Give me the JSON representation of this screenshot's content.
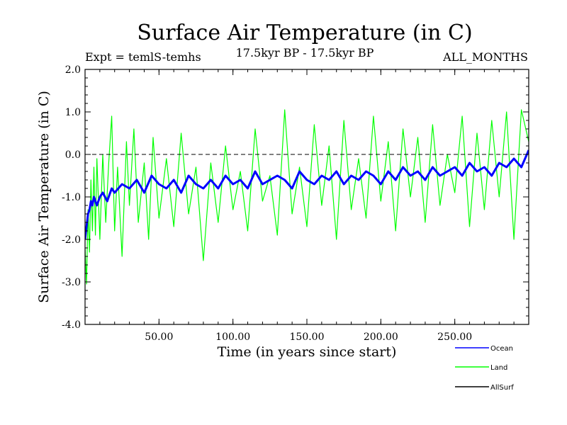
{
  "chart_data": {
    "type": "line",
    "title": "Surface Air Temperature (in C)",
    "subtitle_left": "Expt = temlS-temhs",
    "subtitle_center": "17.5kyr BP - 17.5kyr BP",
    "subtitle_right": "ALL_MONTHS",
    "xlabel": "Time (in years since start)",
    "ylabel": "Surface Air Temperature (in C)",
    "xlim": [
      0,
      300
    ],
    "ylim": [
      -4.0,
      2.0
    ],
    "xticks": [
      50,
      100,
      150,
      200,
      250
    ],
    "xtick_labels": [
      "50.00",
      "100.00",
      "150.00",
      "200.00",
      "250.00"
    ],
    "yticks": [
      -4,
      -3,
      -2,
      -1,
      0,
      1,
      2
    ],
    "ytick_labels": [
      "-4.0",
      "-3.0",
      "-2.0",
      "-1.0",
      "0.0",
      "1.0",
      "2.0"
    ],
    "reference_line": 0.0,
    "series": [
      {
        "name": "Land",
        "color": "#00ff00",
        "x": [
          0,
          1,
          2,
          3,
          4,
          5,
          6,
          7,
          8,
          10,
          12,
          14,
          16,
          18,
          20,
          22,
          25,
          28,
          30,
          33,
          36,
          40,
          43,
          46,
          50,
          55,
          60,
          65,
          70,
          75,
          80,
          85,
          90,
          95,
          100,
          105,
          110,
          115,
          120,
          125,
          130,
          135,
          140,
          145,
          150,
          155,
          160,
          165,
          170,
          175,
          180,
          185,
          190,
          195,
          200,
          205,
          210,
          215,
          220,
          225,
          230,
          235,
          240,
          245,
          250,
          255,
          260,
          265,
          270,
          275,
          280,
          285,
          290,
          295,
          300
        ],
        "values": [
          -2.2,
          -3.05,
          -1.3,
          -2.3,
          -0.6,
          -1.8,
          -0.3,
          -1.9,
          -0.1,
          -2.0,
          0.0,
          -1.6,
          -0.2,
          0.9,
          -1.8,
          -0.3,
          -2.4,
          0.3,
          -1.2,
          0.6,
          -1.6,
          -0.2,
          -2.0,
          0.4,
          -1.5,
          -0.1,
          -1.7,
          0.5,
          -1.4,
          -0.3,
          -2.5,
          -0.2,
          -1.6,
          0.2,
          -1.3,
          -0.4,
          -1.8,
          0.6,
          -1.1,
          -0.5,
          -1.9,
          1.05,
          -1.4,
          -0.3,
          -1.7,
          0.7,
          -1.2,
          0.2,
          -2.0,
          0.8,
          -1.3,
          -0.1,
          -1.5,
          0.9,
          -1.1,
          0.3,
          -1.8,
          0.6,
          -1.0,
          0.4,
          -1.6,
          0.7,
          -1.2,
          0.0,
          -0.9,
          0.9,
          -1.7,
          0.5,
          -1.3,
          0.8,
          -1.0,
          1.0,
          -2.0,
          1.05,
          0.3
        ]
      },
      {
        "name": "Ocean",
        "color": "#0000ff",
        "x": [
          0,
          1,
          2,
          3,
          4,
          5,
          6,
          8,
          10,
          12,
          15,
          18,
          20,
          25,
          30,
          35,
          40,
          45,
          50,
          55,
          60,
          65,
          70,
          75,
          80,
          85,
          90,
          95,
          100,
          105,
          110,
          115,
          120,
          125,
          130,
          135,
          140,
          145,
          150,
          155,
          160,
          165,
          170,
          175,
          180,
          185,
          190,
          195,
          200,
          205,
          210,
          215,
          220,
          225,
          230,
          235,
          240,
          245,
          250,
          255,
          260,
          265,
          270,
          275,
          280,
          285,
          290,
          295,
          300
        ],
        "values": [
          -2.0,
          -1.7,
          -1.4,
          -1.3,
          -1.1,
          -1.2,
          -1.0,
          -1.2,
          -1.0,
          -0.9,
          -1.1,
          -0.8,
          -0.9,
          -0.7,
          -0.8,
          -0.6,
          -0.9,
          -0.5,
          -0.7,
          -0.8,
          -0.6,
          -0.9,
          -0.5,
          -0.7,
          -0.8,
          -0.6,
          -0.8,
          -0.5,
          -0.7,
          -0.6,
          -0.8,
          -0.4,
          -0.7,
          -0.6,
          -0.5,
          -0.6,
          -0.8,
          -0.4,
          -0.6,
          -0.7,
          -0.5,
          -0.6,
          -0.4,
          -0.7,
          -0.5,
          -0.6,
          -0.4,
          -0.5,
          -0.7,
          -0.4,
          -0.6,
          -0.3,
          -0.5,
          -0.4,
          -0.6,
          -0.3,
          -0.5,
          -0.4,
          -0.3,
          -0.5,
          -0.2,
          -0.4,
          -0.3,
          -0.5,
          -0.2,
          -0.3,
          -0.1,
          -0.3,
          0.1
        ]
      },
      {
        "name": "AllSurf",
        "color": "#000000",
        "x": [],
        "values": []
      }
    ],
    "legend": [
      "Ocean",
      "Land",
      "AllSurf"
    ],
    "legend_placement": "bottom-right"
  }
}
